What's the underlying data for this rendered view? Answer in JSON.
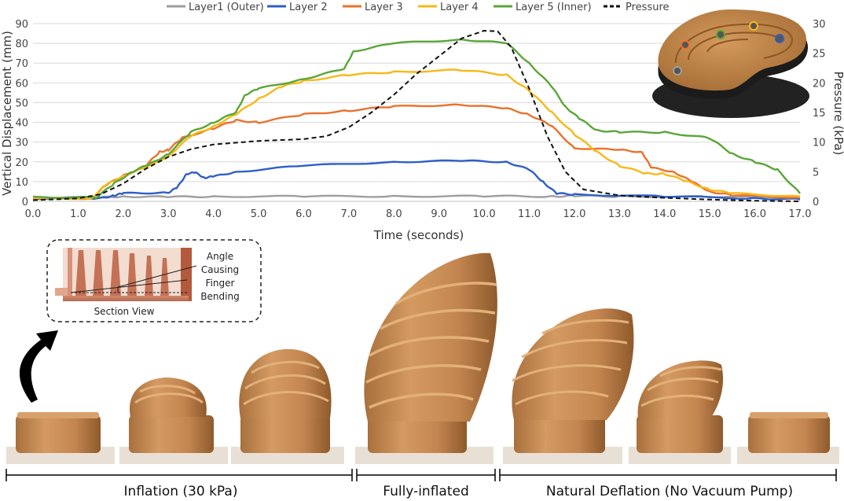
{
  "chart_data": {
    "type": "line",
    "xlabel": "Time (seconds)",
    "ylabel": "Vertical Displacement (mm)",
    "y2label": "Pressure (kPa)",
    "xlim": [
      0,
      17
    ],
    "ylim": [
      0,
      90
    ],
    "y2lim": [
      0,
      30
    ],
    "x_ticks": [
      "0.0",
      "1.0",
      "2.0",
      "3.0",
      "4.0",
      "5.0",
      "6.0",
      "7.0",
      "8.0",
      "9.0",
      "10.0",
      "11.0",
      "12.0",
      "13.0",
      "14.0",
      "15.0",
      "16.0",
      "17.0"
    ],
    "y_ticks": [
      "0",
      "10",
      "20",
      "30",
      "40",
      "50",
      "60",
      "70",
      "80",
      "90"
    ],
    "y2_ticks": [
      "0",
      "5",
      "10",
      "15",
      "20",
      "25",
      "30"
    ],
    "legend_position": "top",
    "series": [
      {
        "name": "Layer1 (Outer)",
        "color": "#9e9e9e",
        "axis": "left",
        "dash": false,
        "points": [
          [
            0,
            2
          ],
          [
            1.5,
            2
          ],
          [
            2,
            2.5
          ],
          [
            3,
            2.2
          ],
          [
            4,
            2.5
          ],
          [
            6,
            2.5
          ],
          [
            8,
            2.6
          ],
          [
            10,
            2.6
          ],
          [
            11.5,
            2.5
          ],
          [
            12,
            2.8
          ],
          [
            13,
            2.5
          ],
          [
            15,
            2.3
          ],
          [
            17,
            2
          ]
        ]
      },
      {
        "name": "Layer 2",
        "color": "#2f5fc7",
        "axis": "left",
        "dash": false,
        "points": [
          [
            0,
            1.5
          ],
          [
            1.5,
            1.5
          ],
          [
            1.8,
            3
          ],
          [
            2,
            4
          ],
          [
            3,
            4.5
          ],
          [
            3.2,
            7
          ],
          [
            3.4,
            14
          ],
          [
            3.6,
            14.5
          ],
          [
            3.8,
            12
          ],
          [
            4,
            12.5
          ],
          [
            4.5,
            15
          ],
          [
            6,
            18
          ],
          [
            8,
            20
          ],
          [
            9.5,
            20.5
          ],
          [
            10.5,
            20
          ],
          [
            11,
            16
          ],
          [
            11.3,
            10
          ],
          [
            11.6,
            4
          ],
          [
            12,
            3.5
          ],
          [
            14,
            2.5
          ],
          [
            16,
            1.5
          ],
          [
            17,
            1
          ]
        ]
      },
      {
        "name": "Layer 3",
        "color": "#e9722d",
        "axis": "left",
        "dash": false,
        "points": [
          [
            0,
            1.5
          ],
          [
            1.3,
            1.5
          ],
          [
            1.6,
            8
          ],
          [
            2,
            13
          ],
          [
            2.5,
            18
          ],
          [
            2.8,
            25
          ],
          [
            3,
            26
          ],
          [
            3.3,
            32
          ],
          [
            4,
            37
          ],
          [
            4.5,
            41
          ],
          [
            5,
            40
          ],
          [
            6,
            44
          ],
          [
            7,
            46
          ],
          [
            8,
            48
          ],
          [
            9.5,
            49
          ],
          [
            10.5,
            47
          ],
          [
            11,
            44
          ],
          [
            11.5,
            38
          ],
          [
            12,
            27
          ],
          [
            13,
            26
          ],
          [
            13.5,
            25
          ],
          [
            13.7,
            17
          ],
          [
            14.2,
            15
          ],
          [
            14.6,
            10
          ],
          [
            15,
            5
          ],
          [
            15.5,
            3
          ],
          [
            17,
            2
          ]
        ]
      },
      {
        "name": "Layer 4",
        "color": "#f7b818",
        "axis": "left",
        "dash": false,
        "points": [
          [
            0,
            1.5
          ],
          [
            1.3,
            1.5
          ],
          [
            1.6,
            8
          ],
          [
            2,
            13
          ],
          [
            2.5,
            17
          ],
          [
            3,
            23
          ],
          [
            3.5,
            33
          ],
          [
            4,
            38
          ],
          [
            4.5,
            44
          ],
          [
            5,
            52
          ],
          [
            5.5,
            58
          ],
          [
            6,
            61
          ],
          [
            7,
            64
          ],
          [
            8,
            65.5
          ],
          [
            9.5,
            66.5
          ],
          [
            10.5,
            64
          ],
          [
            11,
            56
          ],
          [
            11.5,
            45
          ],
          [
            12,
            34
          ],
          [
            12.5,
            25
          ],
          [
            13,
            18
          ],
          [
            13.6,
            14
          ],
          [
            14,
            14
          ],
          [
            14.5,
            10
          ],
          [
            15,
            6
          ],
          [
            15.5,
            4
          ],
          [
            17,
            2.5
          ]
        ]
      },
      {
        "name": "Layer 5 (Inner)",
        "color": "#5aa638",
        "axis": "left",
        "dash": false,
        "points": [
          [
            0,
            2
          ],
          [
            1.4,
            2
          ],
          [
            1.8,
            9
          ],
          [
            2.2,
            15
          ],
          [
            2.6,
            19
          ],
          [
            3,
            24
          ],
          [
            3.5,
            35
          ],
          [
            4,
            40
          ],
          [
            4.5,
            45
          ],
          [
            4.7,
            54
          ],
          [
            5,
            57
          ],
          [
            6,
            62
          ],
          [
            6.9,
            67
          ],
          [
            7.1,
            76
          ],
          [
            8,
            80
          ],
          [
            9.5,
            82
          ],
          [
            10.5,
            80
          ],
          [
            11,
            70
          ],
          [
            11.5,
            58
          ],
          [
            11.8,
            48
          ],
          [
            12.1,
            42
          ],
          [
            12.5,
            36
          ],
          [
            13,
            35
          ],
          [
            14,
            35
          ],
          [
            15,
            32
          ],
          [
            15.5,
            24
          ],
          [
            16,
            20
          ],
          [
            16.5,
            16
          ],
          [
            17,
            4
          ]
        ]
      },
      {
        "name": "Pressure",
        "color": "#111111",
        "axis": "right",
        "dash": true,
        "points": [
          [
            0,
            0.2
          ],
          [
            1,
            0.5
          ],
          [
            1.5,
            1.2
          ],
          [
            2,
            3
          ],
          [
            2.5,
            5.5
          ],
          [
            3,
            7.5
          ],
          [
            3.5,
            8.8
          ],
          [
            4,
            9.6
          ],
          [
            5,
            10.2
          ],
          [
            6,
            10.5
          ],
          [
            6.5,
            11
          ],
          [
            7,
            12.5
          ],
          [
            7.5,
            15
          ],
          [
            8,
            18
          ],
          [
            8.5,
            21.5
          ],
          [
            9,
            24.5
          ],
          [
            9.5,
            27.5
          ],
          [
            10,
            28.8
          ],
          [
            10.3,
            28.7
          ],
          [
            10.6,
            26
          ],
          [
            11,
            19
          ],
          [
            11.4,
            11
          ],
          [
            11.8,
            5
          ],
          [
            12.2,
            2
          ],
          [
            13,
            1
          ],
          [
            14,
            0.6
          ],
          [
            15,
            0.3
          ],
          [
            16,
            0.1
          ],
          [
            17,
            0
          ]
        ]
      }
    ]
  },
  "inset": {
    "labels": [
      "Angle",
      "Causing",
      "Finger",
      "Bending"
    ],
    "section_label": "Section View"
  },
  "photos": {
    "stages": [
      {
        "label": "Inflation (30 kPa)"
      },
      {
        "label": "Fully-inflated"
      },
      {
        "label": "Natural Deflation (No Vacuum Pump)"
      }
    ]
  },
  "colors": {
    "silicone": "#c6884e",
    "silicone_dark": "#9a6230",
    "silicone_light": "#dca572",
    "base": "#e9e0d5"
  }
}
